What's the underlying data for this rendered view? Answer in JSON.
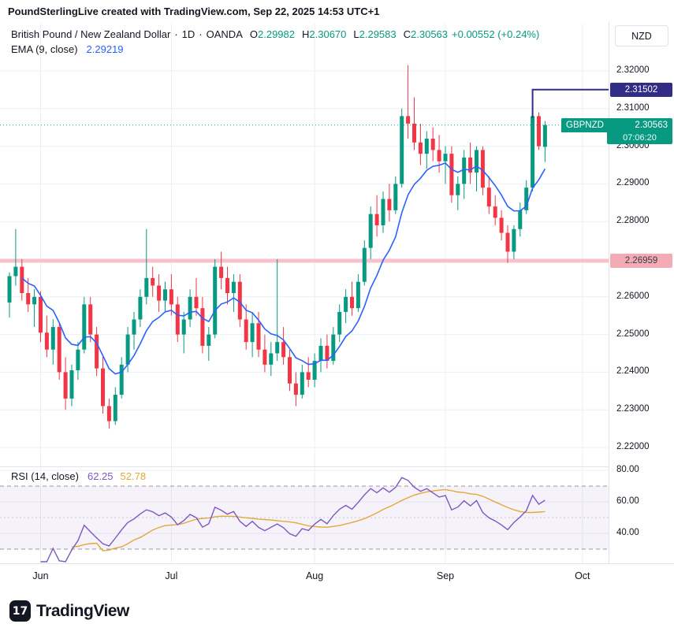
{
  "header": {
    "title": "PoundSterlingLive created with TradingView.com, Sep 22, 2025 14:53 UTC+1"
  },
  "legend": {
    "symbol": "British Pound / New Zealand Dollar",
    "sep": "·",
    "timeframe": "1D",
    "exchange": "OANDA",
    "ohlc": {
      "o_label": "O",
      "o": "2.29982",
      "h_label": "H",
      "h": "2.30670",
      "l_label": "L",
      "l": "2.29583",
      "c_label": "C",
      "c": "2.30563",
      "change": "+0.00552 (+0.24%)"
    },
    "ema": {
      "label": "EMA (9, close)",
      "value": "2.29219"
    }
  },
  "rsi_legend": {
    "label": "RSI (14, close)",
    "value": "62.25",
    "ma_value": "52.78"
  },
  "axis": {
    "currency": "NZD",
    "price_ticks": [
      {
        "v": 2.32,
        "label": "2.32000"
      },
      {
        "v": 2.31,
        "label": "2.31000"
      },
      {
        "v": 2.3,
        "label": "2.30000"
      },
      {
        "v": 2.29,
        "label": "2.29000"
      },
      {
        "v": 2.28,
        "label": "2.28000"
      },
      {
        "v": 2.26,
        "label": "2.26000"
      },
      {
        "v": 2.25,
        "label": "2.25000"
      },
      {
        "v": 2.24,
        "label": "2.24000"
      },
      {
        "v": 2.23,
        "label": "2.23000"
      },
      {
        "v": 2.22,
        "label": "2.22000"
      }
    ],
    "rsi_ticks": [
      {
        "v": 80,
        "label": "80.00"
      },
      {
        "v": 60,
        "label": "60.00"
      },
      {
        "v": 40,
        "label": "40.00"
      }
    ]
  },
  "badges": {
    "level": {
      "label": "2.31502",
      "value": 2.31502
    },
    "price": {
      "symbol": "GBPNZD",
      "label": "2.30563",
      "value": 2.30563,
      "countdown": "07:06:20"
    },
    "support": {
      "label": "2.26959",
      "value": 2.26959
    }
  },
  "footer": {
    "logo_text": "TradingView",
    "logo_glyph": "17"
  },
  "colors": {
    "up": "#089981",
    "down": "#f23645",
    "ema": "#2962ff",
    "rsi": "#7e57c2",
    "rsi_ma": "#e2a93b",
    "resistance": "#312c85",
    "support_band": "#f7c2cb",
    "support_badge_bg": "#f3abb6",
    "support_badge_text": "#3c3c44",
    "grid": "#eceff4",
    "axis_border": "#e0e3eb",
    "dash": "#9598a1",
    "mid_dash": "#c6c9d0",
    "rsi_band_fill": "rgba(126,87,194,0.08)"
  },
  "chart_data": {
    "type": "candlestick",
    "title": "British Pound / New Zealand Dollar, 1D, OANDA",
    "ylabel": "NZD",
    "ylim": [
      2.215,
      2.333
    ],
    "grid_step": 0.01,
    "x_axis": {
      "months": [
        {
          "label": "Jun",
          "index": 5
        },
        {
          "label": "Jul",
          "index": 26
        },
        {
          "label": "Aug",
          "index": 49
        },
        {
          "label": "Sep",
          "index": 70
        },
        {
          "label": "Oct",
          "index": 92
        }
      ]
    },
    "candles": [
      [
        2.2585,
        2.2665,
        2.2545,
        2.2655
      ],
      [
        2.2655,
        2.278,
        2.263,
        2.268
      ],
      [
        2.268,
        2.27,
        2.259,
        2.261
      ],
      [
        2.261,
        2.265,
        2.256,
        2.258
      ],
      [
        2.258,
        2.262,
        2.252,
        2.26
      ],
      [
        2.26,
        2.2615,
        2.248,
        2.2505
      ],
      [
        2.2505,
        2.255,
        2.244,
        2.246
      ],
      [
        2.246,
        2.254,
        2.242,
        2.252
      ],
      [
        2.252,
        2.253,
        2.238,
        2.24
      ],
      [
        2.24,
        2.244,
        2.23,
        2.233
      ],
      [
        2.233,
        2.242,
        2.231,
        2.2405
      ],
      [
        2.2405,
        2.248,
        2.238,
        2.246
      ],
      [
        2.246,
        2.26,
        2.245,
        2.258
      ],
      [
        2.258,
        2.26,
        2.248,
        2.25
      ],
      [
        2.25,
        2.252,
        2.239,
        2.241
      ],
      [
        2.241,
        2.244,
        2.229,
        2.231
      ],
      [
        2.231,
        2.233,
        2.225,
        2.227
      ],
      [
        2.227,
        2.236,
        2.226,
        2.234
      ],
      [
        2.234,
        2.244,
        2.233,
        2.242
      ],
      [
        2.242,
        2.252,
        2.24,
        2.25
      ],
      [
        2.25,
        2.256,
        2.246,
        2.254
      ],
      [
        2.254,
        2.262,
        2.252,
        2.26
      ],
      [
        2.26,
        2.278,
        2.258,
        2.265
      ],
      [
        2.265,
        2.268,
        2.26,
        2.263
      ],
      [
        2.263,
        2.266,
        2.256,
        2.259
      ],
      [
        2.259,
        2.264,
        2.256,
        2.262
      ],
      [
        2.262,
        2.266,
        2.255,
        2.258
      ],
      [
        2.258,
        2.26,
        2.248,
        2.25
      ],
      [
        2.25,
        2.256,
        2.245,
        2.254
      ],
      [
        2.254,
        2.262,
        2.252,
        2.26
      ],
      [
        2.26,
        2.265,
        2.255,
        2.257
      ],
      [
        2.257,
        2.26,
        2.245,
        2.247
      ],
      [
        2.247,
        2.252,
        2.243,
        2.25
      ],
      [
        2.25,
        2.27,
        2.249,
        2.268
      ],
      [
        2.268,
        2.272,
        2.262,
        2.265
      ],
      [
        2.265,
        2.268,
        2.258,
        2.261
      ],
      [
        2.261,
        2.266,
        2.256,
        2.264
      ],
      [
        2.264,
        2.266,
        2.252,
        2.254
      ],
      [
        2.254,
        2.258,
        2.246,
        2.248
      ],
      [
        2.248,
        2.256,
        2.244,
        2.253
      ],
      [
        2.253,
        2.256,
        2.244,
        2.246
      ],
      [
        2.246,
        2.25,
        2.24,
        2.242
      ],
      [
        2.242,
        2.248,
        2.239,
        2.245
      ],
      [
        2.245,
        2.27,
        2.243,
        2.248
      ],
      [
        2.248,
        2.252,
        2.242,
        2.244
      ],
      [
        2.244,
        2.246,
        2.235,
        2.237
      ],
      [
        2.237,
        2.24,
        2.231,
        2.234
      ],
      [
        2.234,
        2.242,
        2.233,
        2.24
      ],
      [
        2.24,
        2.244,
        2.236,
        2.238
      ],
      [
        2.238,
        2.245,
        2.236,
        2.243
      ],
      [
        2.243,
        2.249,
        2.24,
        2.247
      ],
      [
        2.247,
        2.25,
        2.241,
        2.243
      ],
      [
        2.243,
        2.252,
        2.242,
        2.25
      ],
      [
        2.25,
        2.258,
        2.248,
        2.256
      ],
      [
        2.256,
        2.262,
        2.253,
        2.26
      ],
      [
        2.26,
        2.264,
        2.255,
        2.257
      ],
      [
        2.257,
        2.266,
        2.256,
        2.264
      ],
      [
        2.264,
        2.275,
        2.263,
        2.273
      ],
      [
        2.273,
        2.284,
        2.27,
        2.282
      ],
      [
        2.282,
        2.287,
        2.276,
        2.279
      ],
      [
        2.279,
        2.288,
        2.277,
        2.286
      ],
      [
        2.286,
        2.29,
        2.28,
        2.283
      ],
      [
        2.283,
        2.292,
        2.282,
        2.29
      ],
      [
        2.29,
        2.31,
        2.289,
        2.308
      ],
      [
        2.308,
        2.3215,
        2.302,
        2.306
      ],
      [
        2.306,
        2.313,
        2.299,
        2.301
      ],
      [
        2.301,
        2.306,
        2.295,
        2.298
      ],
      [
        2.298,
        2.304,
        2.294,
        2.302
      ],
      [
        2.302,
        2.305,
        2.296,
        2.299
      ],
      [
        2.299,
        2.303,
        2.293,
        2.296
      ],
      [
        2.296,
        2.3,
        2.29,
        2.298
      ],
      [
        2.298,
        2.3,
        2.285,
        2.287
      ],
      [
        2.287,
        2.292,
        2.283,
        2.29
      ],
      [
        2.29,
        2.299,
        2.286,
        2.297
      ],
      [
        2.297,
        2.301,
        2.29,
        2.293
      ],
      [
        2.293,
        2.3,
        2.288,
        2.299
      ],
      [
        2.299,
        2.3,
        2.287,
        2.289
      ],
      [
        2.289,
        2.292,
        2.282,
        2.284
      ],
      [
        2.284,
        2.287,
        2.279,
        2.281
      ],
      [
        2.281,
        2.283,
        2.275,
        2.277
      ],
      [
        2.277,
        2.279,
        2.269,
        2.272
      ],
      [
        2.272,
        2.279,
        2.27,
        2.278
      ],
      [
        2.278,
        2.285,
        2.276,
        2.283
      ],
      [
        2.283,
        2.291,
        2.282,
        2.289
      ],
      [
        2.289,
        2.315,
        2.288,
        2.308
      ],
      [
        2.308,
        2.309,
        2.299,
        2.3
      ],
      [
        2.29982,
        2.3067,
        2.29583,
        2.30563
      ]
    ],
    "indicators": {
      "ema": {
        "period": 9,
        "source": "close",
        "value": 2.29219
      },
      "rsi": {
        "period": 14,
        "source": "close",
        "value": 62.25,
        "ma_value": 52.78,
        "bands": [
          70,
          50,
          30
        ],
        "visible_ticks": [
          80,
          60,
          40
        ]
      }
    },
    "levels": {
      "resistance": {
        "value": 2.31502,
        "from_index": 84
      },
      "support": {
        "value": 2.26959
      },
      "last_price": {
        "value": 2.30563
      }
    }
  }
}
